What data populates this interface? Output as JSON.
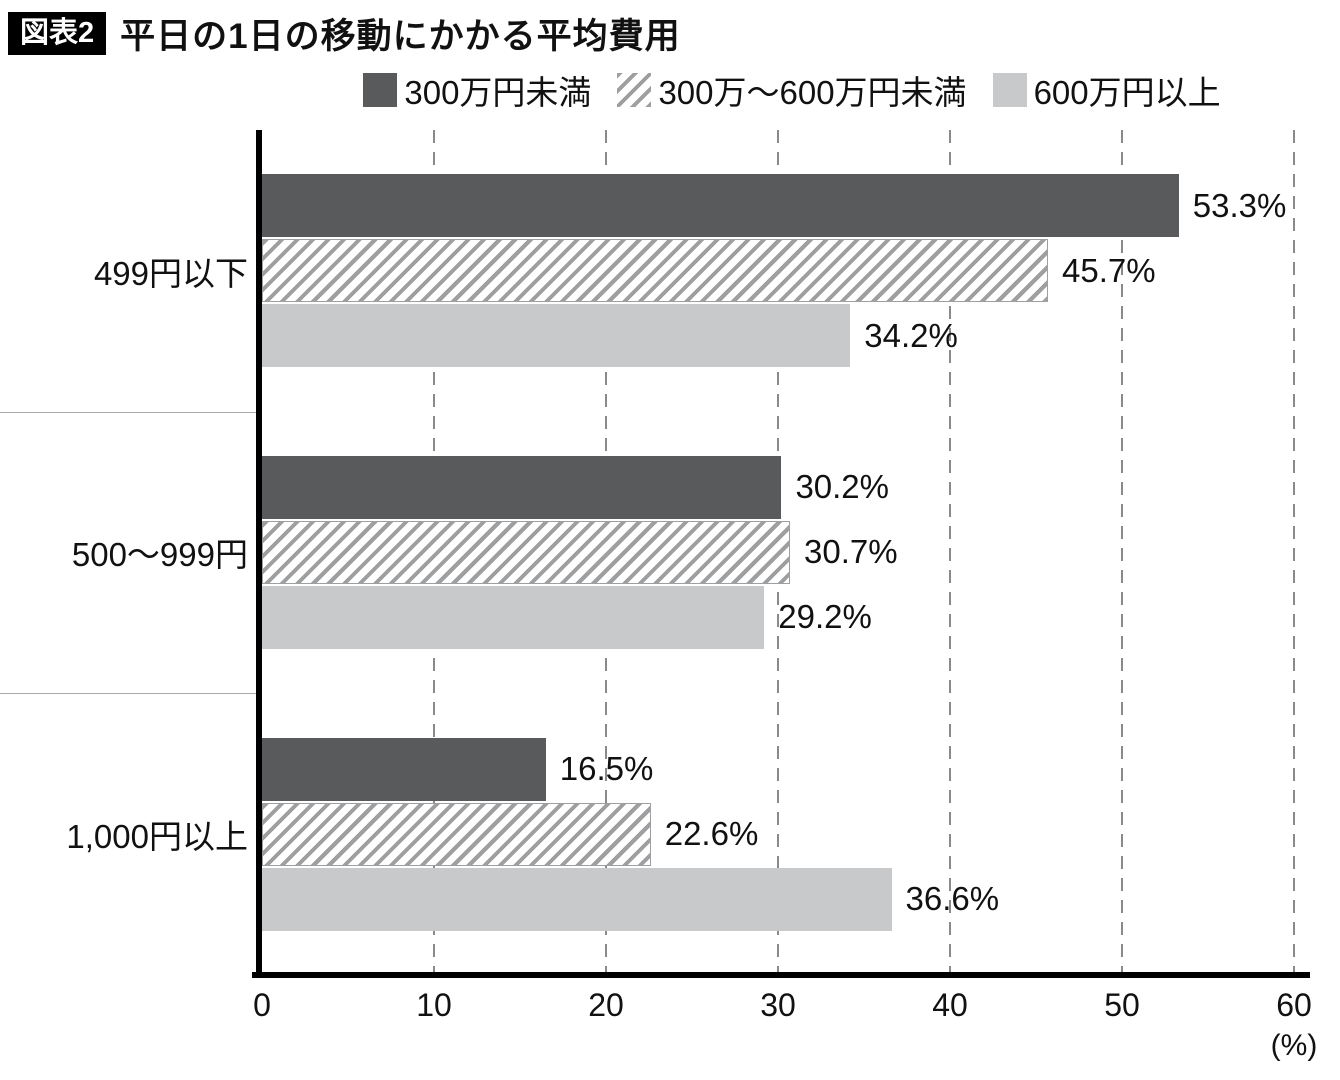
{
  "header": {
    "tag": "図表2",
    "title": "平日の1日の移動にかかる平均費用"
  },
  "legend": [
    {
      "label": "300万円未満",
      "swatch": "solid-dark"
    },
    {
      "label": "300万〜600万円未満",
      "swatch": "hatched"
    },
    {
      "label": "600万円以上",
      "swatch": "solid-light"
    }
  ],
  "colors": {
    "dark_series": "#595a5c",
    "hatch_line": "#9e9fa0",
    "light_series": "#c8c9ca",
    "axis": "#000000",
    "gridline": "#8a8a8a"
  },
  "chart_data": {
    "type": "bar",
    "orientation": "horizontal",
    "title": "平日の1日の移動にかかる平均費用",
    "categories": [
      "499円以下",
      "500〜999円",
      "1,000円以上"
    ],
    "series": [
      {
        "name": "300万円未満",
        "values": [
          53.3,
          30.2,
          16.5
        ],
        "labels": [
          "53.3%",
          "30.2%",
          "16.5%"
        ]
      },
      {
        "name": "300万〜600万円未満",
        "values": [
          45.7,
          30.7,
          22.6
        ],
        "labels": [
          "45.7%",
          "30.7%",
          "22.6%"
        ]
      },
      {
        "name": "600万円以上",
        "values": [
          34.2,
          29.2,
          36.6
        ],
        "labels": [
          "34.2%",
          "29.2%",
          "36.6%"
        ]
      }
    ],
    "xlim": [
      0,
      60
    ],
    "x_ticks": [
      0,
      10,
      20,
      30,
      40,
      50,
      60
    ],
    "x_unit": "(%)",
    "grid": true,
    "legend_position": "top"
  }
}
